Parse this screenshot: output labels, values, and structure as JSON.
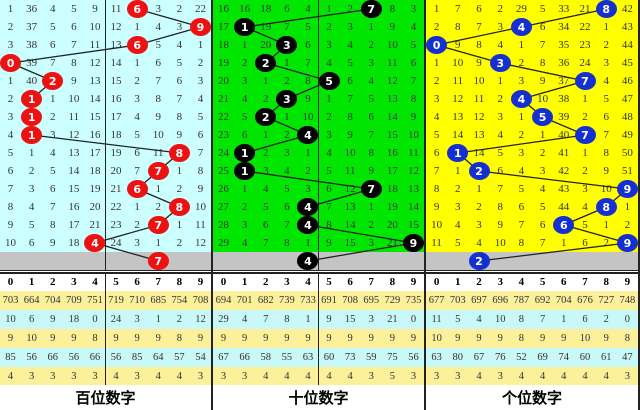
{
  "panels": [
    {
      "title": "百位数字",
      "bg": "#ccffff",
      "ball_color": "#ee1111",
      "rows": [
        [
          "1",
          "36",
          "4",
          "5",
          "9",
          "11",
          "6",
          "3",
          "2",
          "22"
        ],
        [
          "2",
          "37",
          "5",
          "6",
          "10",
          "12",
          "1",
          "4",
          "3",
          "9"
        ],
        [
          "3",
          "38",
          "6",
          "7",
          "11",
          "13",
          "6",
          "5",
          "4",
          "1"
        ],
        [
          "0",
          "39",
          "7",
          "8",
          "12",
          "14",
          "1",
          "6",
          "5",
          "2"
        ],
        [
          "1",
          "40",
          "2",
          "9",
          "13",
          "15",
          "2",
          "7",
          "6",
          "3"
        ],
        [
          "2",
          "1",
          "1",
          "10",
          "14",
          "16",
          "3",
          "8",
          "7",
          "4"
        ],
        [
          "3",
          "1",
          "2",
          "11",
          "15",
          "17",
          "4",
          "9",
          "8",
          "5"
        ],
        [
          "4",
          "1",
          "3",
          "12",
          "16",
          "18",
          "5",
          "10",
          "9",
          "6"
        ],
        [
          "5",
          "1",
          "4",
          "13",
          "17",
          "19",
          "6",
          "11",
          "8",
          "7"
        ],
        [
          "6",
          "2",
          "5",
          "14",
          "18",
          "20",
          "7",
          "7",
          "1",
          "8"
        ],
        [
          "7",
          "3",
          "6",
          "15",
          "19",
          "21",
          "6",
          "1",
          "2",
          "9"
        ],
        [
          "8",
          "4",
          "7",
          "16",
          "20",
          "22",
          "1",
          "2",
          "8",
          "10"
        ],
        [
          "9",
          "5",
          "8",
          "17",
          "21",
          "23",
          "2",
          "7",
          "1",
          "11"
        ],
        [
          "10",
          "6",
          "9",
          "18",
          "4",
          "24",
          "3",
          "1",
          "2",
          "12"
        ]
      ],
      "draws": [
        6,
        9,
        6,
        0,
        2,
        1,
        1,
        1,
        8,
        7,
        6,
        8,
        7,
        4,
        7
      ],
      "stats_header": [
        "0",
        "1",
        "2",
        "3",
        "4",
        "5",
        "6",
        "7",
        "8",
        "9"
      ],
      "stats": [
        [
          "703",
          "664",
          "704",
          "709",
          "751",
          "719",
          "710",
          "685",
          "754",
          "708"
        ],
        [
          "10",
          "6",
          "9",
          "18",
          "0",
          "24",
          "3",
          "1",
          "2",
          "12"
        ],
        [
          "9",
          "10",
          "9",
          "9",
          "8",
          "9",
          "9",
          "9",
          "8",
          "9"
        ],
        [
          "85",
          "56",
          "66",
          "56",
          "66",
          "56",
          "85",
          "64",
          "57",
          "54"
        ],
        [
          "4",
          "3",
          "3",
          "3",
          "3",
          "4",
          "3",
          "4",
          "4",
          "3"
        ]
      ]
    },
    {
      "title": "十位数字",
      "bg": "#00e600",
      "ball_color": "#000000",
      "rows": [
        [
          "16",
          "16",
          "18",
          "6",
          "4",
          "1",
          "2",
          "7",
          "8",
          "3"
        ],
        [
          "17",
          "1",
          "19",
          "7",
          "5",
          "2",
          "3",
          "1",
          "9",
          "4"
        ],
        [
          "18",
          "1",
          "20",
          "3",
          "6",
          "3",
          "4",
          "2",
          "10",
          "5"
        ],
        [
          "19",
          "2",
          "2",
          "1",
          "7",
          "4",
          "5",
          "3",
          "11",
          "6"
        ],
        [
          "20",
          "3",
          "1",
          "2",
          "8",
          "5",
          "6",
          "4",
          "12",
          "7"
        ],
        [
          "21",
          "4",
          "2",
          "3",
          "9",
          "1",
          "7",
          "5",
          "13",
          "8"
        ],
        [
          "22",
          "5",
          "2",
          "1",
          "10",
          "2",
          "8",
          "6",
          "14",
          "9"
        ],
        [
          "23",
          "6",
          "1",
          "2",
          "4",
          "3",
          "9",
          "7",
          "15",
          "10"
        ],
        [
          "24",
          "1",
          "2",
          "3",
          "1",
          "4",
          "10",
          "8",
          "16",
          "11"
        ],
        [
          "25",
          "1",
          "3",
          "4",
          "2",
          "5",
          "11",
          "9",
          "17",
          "12"
        ],
        [
          "26",
          "1",
          "4",
          "5",
          "3",
          "6",
          "12",
          "7",
          "18",
          "13"
        ],
        [
          "27",
          "2",
          "5",
          "6",
          "4",
          "7",
          "13",
          "1",
          "19",
          "14"
        ],
        [
          "28",
          "3",
          "6",
          "7",
          "4",
          "8",
          "14",
          "2",
          "20",
          "15"
        ],
        [
          "29",
          "4",
          "7",
          "8",
          "1",
          "9",
          "15",
          "3",
          "21",
          "9"
        ]
      ],
      "draws": [
        7,
        1,
        3,
        2,
        5,
        3,
        2,
        4,
        1,
        1,
        7,
        4,
        4,
        9,
        4
      ],
      "stats_header": [
        "0",
        "1",
        "2",
        "3",
        "4",
        "5",
        "6",
        "7",
        "8",
        "9"
      ],
      "stats": [
        [
          "694",
          "701",
          "682",
          "739",
          "733",
          "691",
          "708",
          "695",
          "729",
          "735"
        ],
        [
          "29",
          "4",
          "7",
          "8",
          "1",
          "9",
          "15",
          "3",
          "21",
          "0"
        ],
        [
          "9",
          "9",
          "9",
          "9",
          "9",
          "9",
          "9",
          "9",
          "9",
          "9"
        ],
        [
          "67",
          "66",
          "58",
          "55",
          "63",
          "60",
          "73",
          "59",
          "75",
          "56"
        ],
        [
          "3",
          "3",
          "4",
          "4",
          "4",
          "4",
          "4",
          "3",
          "5",
          "3"
        ]
      ]
    },
    {
      "title": "个位数字",
      "bg": "#ffff00",
      "ball_color": "#1530d0",
      "rows": [
        [
          "1",
          "7",
          "6",
          "2",
          "29",
          "5",
          "33",
          "21",
          "8",
          "42"
        ],
        [
          "2",
          "8",
          "7",
          "3",
          "4",
          "6",
          "34",
          "22",
          "1",
          "43"
        ],
        [
          "0",
          "9",
          "8",
          "4",
          "1",
          "7",
          "35",
          "23",
          "2",
          "44"
        ],
        [
          "1",
          "10",
          "9",
          "3",
          "2",
          "8",
          "36",
          "24",
          "3",
          "45"
        ],
        [
          "2",
          "11",
          "10",
          "1",
          "3",
          "9",
          "37",
          "7",
          "4",
          "46"
        ],
        [
          "3",
          "12",
          "11",
          "2",
          "4",
          "10",
          "38",
          "1",
          "5",
          "47"
        ],
        [
          "4",
          "13",
          "12",
          "3",
          "1",
          "5",
          "39",
          "2",
          "6",
          "48"
        ],
        [
          "5",
          "14",
          "13",
          "4",
          "2",
          "1",
          "40",
          "7",
          "7",
          "49"
        ],
        [
          "6",
          "1",
          "14",
          "5",
          "3",
          "2",
          "41",
          "1",
          "8",
          "50"
        ],
        [
          "7",
          "1",
          "2",
          "6",
          "4",
          "3",
          "42",
          "2",
          "9",
          "51"
        ],
        [
          "8",
          "2",
          "1",
          "7",
          "5",
          "4",
          "43",
          "3",
          "10",
          "9"
        ],
        [
          "9",
          "3",
          "2",
          "8",
          "6",
          "5",
          "44",
          "4",
          "8",
          "1"
        ],
        [
          "10",
          "4",
          "3",
          "9",
          "7",
          "6",
          "6",
          "5",
          "1",
          "2"
        ],
        [
          "11",
          "5",
          "4",
          "10",
          "8",
          "7",
          "1",
          "6",
          "2",
          "9"
        ]
      ],
      "draws": [
        8,
        4,
        0,
        3,
        7,
        4,
        5,
        7,
        1,
        2,
        9,
        8,
        6,
        9,
        2
      ],
      "stats_header": [
        "0",
        "1",
        "2",
        "3",
        "4",
        "5",
        "6",
        "7",
        "8",
        "9"
      ],
      "stats": [
        [
          "677",
          "703",
          "697",
          "696",
          "787",
          "692",
          "704",
          "676",
          "727",
          "748"
        ],
        [
          "11",
          "5",
          "4",
          "10",
          "8",
          "7",
          "1",
          "6",
          "2",
          "0"
        ],
        [
          "10",
          "9",
          "9",
          "9",
          "8",
          "9",
          "9",
          "10",
          "9",
          "8"
        ],
        [
          "63",
          "80",
          "67",
          "76",
          "52",
          "69",
          "74",
          "60",
          "61",
          "47"
        ],
        [
          "3",
          "3",
          "4",
          "3",
          "4",
          "4",
          "4",
          "4",
          "4",
          "3"
        ]
      ]
    }
  ]
}
